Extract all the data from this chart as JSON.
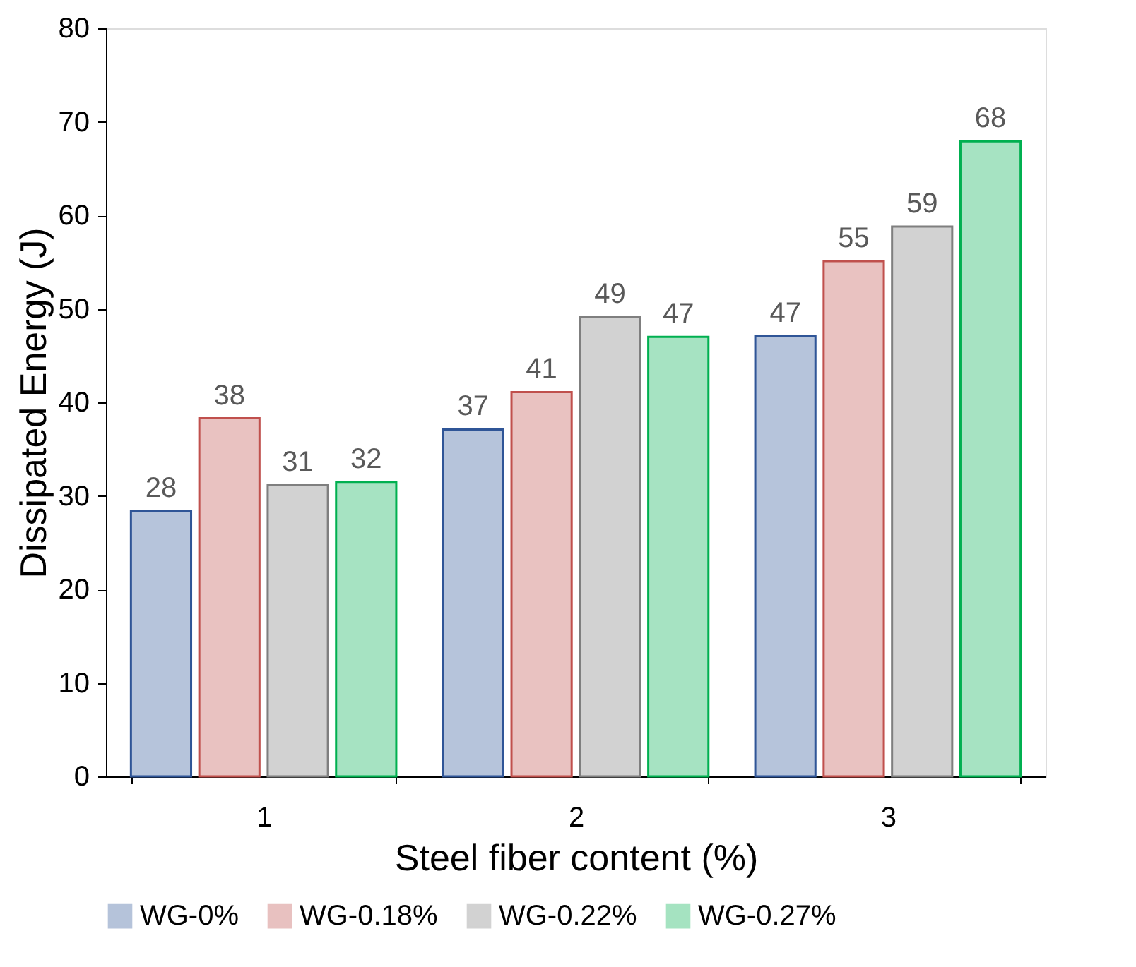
{
  "chart_data": {
    "type": "bar",
    "xlabel": "Steel fiber content (%)",
    "ylabel": "Dissipated Energy (J)",
    "categories": [
      "1",
      "2",
      "3"
    ],
    "series": [
      {
        "name": "WG-0%",
        "color": "#2f5597",
        "values": [
          28.4,
          37.1,
          47.1
        ],
        "value_labels": [
          "28",
          "37",
          "47"
        ]
      },
      {
        "name": "WG-0.18%",
        "color": "#c0504d",
        "values": [
          38.3,
          41.1,
          55.1
        ],
        "value_labels": [
          "38",
          "41",
          "55"
        ]
      },
      {
        "name": "WG-0.22%",
        "color": "#7f7f7f",
        "values": [
          31.2,
          49.1,
          58.8
        ],
        "value_labels": [
          "31",
          "49",
          "59"
        ]
      },
      {
        "name": "WG-0.27%",
        "color": "#00b050",
        "values": [
          31.5,
          47.0,
          67.9
        ],
        "value_labels": [
          "32",
          "47",
          "68"
        ]
      }
    ],
    "ylim": [
      0,
      80
    ],
    "yticks": [
      0,
      10,
      20,
      30,
      40,
      50,
      60,
      70,
      80
    ],
    "grid": false,
    "legend": "bottom"
  }
}
